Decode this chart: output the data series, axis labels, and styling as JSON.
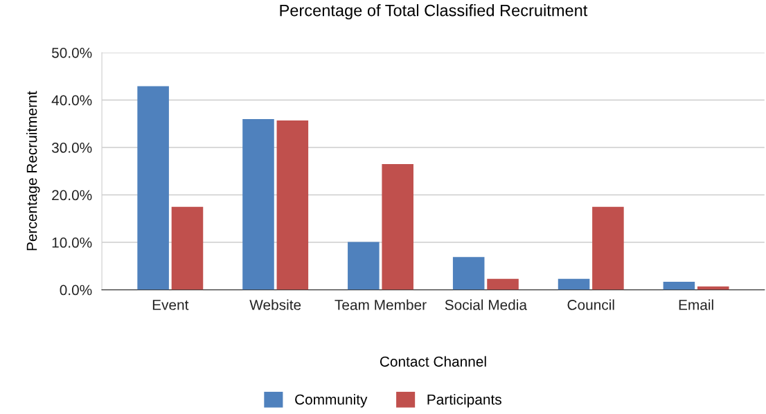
{
  "chart_data": {
    "type": "bar",
    "title": "Percentage of Total Classified Recruitment",
    "xlabel": "Contact Channel",
    "ylabel": "Percentage Recruitmernt",
    "categories": [
      "Event",
      "Website",
      "Team Member",
      "Social Media",
      "Council",
      "Email"
    ],
    "series": [
      {
        "name": "Community",
        "color": "#4f81bd",
        "values": [
          42.9,
          36.0,
          10.1,
          6.9,
          2.3,
          1.7
        ]
      },
      {
        "name": "Participants",
        "color": "#c0504d",
        "values": [
          17.5,
          35.7,
          26.5,
          2.3,
          17.5,
          0.7
        ]
      }
    ],
    "ylim": [
      0,
      50
    ],
    "yticks": [
      {
        "value": 0,
        "label": "0.0%"
      },
      {
        "value": 10,
        "label": "10.0%"
      },
      {
        "value": 20,
        "label": "20.0%"
      },
      {
        "value": 30,
        "label": "30.0%"
      },
      {
        "value": 40,
        "label": "40.0%"
      },
      {
        "value": 50,
        "label": "50.0%"
      }
    ],
    "grid": "y",
    "legend": "bottom"
  }
}
